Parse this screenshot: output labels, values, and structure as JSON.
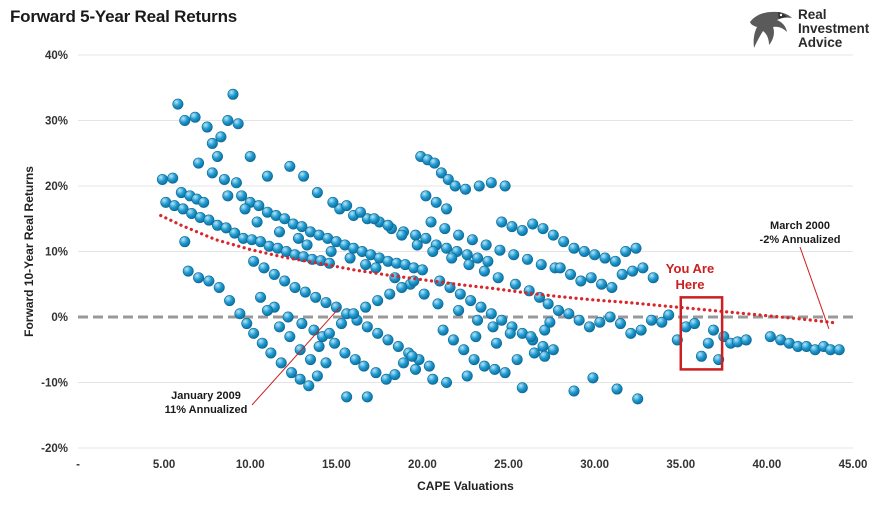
{
  "logo": {
    "brand_lines": [
      "Real",
      "Investment",
      "Advice"
    ]
  },
  "chart_data": {
    "type": "scatter",
    "title": "Forward 5-Year Real Returns",
    "xlabel": "CAPE Valuations",
    "ylabel": "Forward 10-Year Real Returns",
    "xlim": [
      0,
      45
    ],
    "ylim": [
      -20,
      40
    ],
    "x_tick_labels": [
      "-",
      "5.00",
      "10.00",
      "15.00",
      "20.00",
      "25.00",
      "30.00",
      "35.00",
      "40.00",
      "45.00"
    ],
    "y_tick_labels": [
      "-20%",
      "-10%",
      "0%",
      "10%",
      "20%",
      "30%",
      "40%"
    ],
    "grid": "horizontal",
    "colors": {
      "points": "#1f9bd1",
      "trendline": "#d9262b",
      "zero_line": "#999999",
      "highlight_box": "#cc1f1f",
      "annotation_text": "#cc1f1f"
    },
    "trendline": {
      "x": [
        4.8,
        6,
        8,
        10,
        12,
        14,
        16,
        18,
        20,
        22,
        24,
        26,
        28,
        30,
        32,
        34,
        36,
        38,
        40,
        42,
        44
      ],
      "y": [
        15.5,
        14.0,
        11.8,
        10.3,
        9.1,
        8.2,
        7.2,
        6.4,
        5.7,
        5.0,
        4.4,
        3.7,
        3.1,
        2.6,
        2.2,
        1.7,
        1.2,
        0.7,
        0.2,
        -0.3,
        -0.9
      ]
    },
    "zero_line": 0,
    "annotations": [
      {
        "lines": [
          "January 2009",
          "11% Annualized"
        ],
        "color": "#1a1a1a",
        "x": 15.2,
        "y": 1.5
      },
      {
        "lines": [
          "March 2000",
          "-2% Annualized"
        ],
        "color": "#1a1a1a",
        "x": 43.6,
        "y": -1.8
      },
      {
        "lines": [
          "You Are",
          "Here"
        ],
        "color": "#cc1f1f"
      }
    ],
    "highlight_box": {
      "x0": 35.0,
      "x1": 37.4,
      "y0": -8.0,
      "y1": 3.0
    },
    "series": [
      {
        "points": [
          [
            5.8,
            32.5
          ],
          [
            6.8,
            30.5
          ],
          [
            9.0,
            34.0
          ],
          [
            8.7,
            30.0
          ],
          [
            9.3,
            29.5
          ],
          [
            8.3,
            27.5
          ],
          [
            7.8,
            26.5
          ],
          [
            8.1,
            24.5
          ],
          [
            6.2,
            30.0
          ],
          [
            7.5,
            29.0
          ],
          [
            4.9,
            21.0
          ],
          [
            5.5,
            21.2
          ],
          [
            6.0,
            19.0
          ],
          [
            6.5,
            18.5
          ],
          [
            7.0,
            23.5
          ],
          [
            7.8,
            22.0
          ],
          [
            8.5,
            21.0
          ],
          [
            9.2,
            20.5
          ],
          [
            10.0,
            24.5
          ],
          [
            11.0,
            21.5
          ],
          [
            12.3,
            23.0
          ],
          [
            13.1,
            21.5
          ],
          [
            5.1,
            17.5
          ],
          [
            5.6,
            17.0
          ],
          [
            6.1,
            16.5
          ],
          [
            6.6,
            15.8
          ],
          [
            7.1,
            15.2
          ],
          [
            7.6,
            14.8
          ],
          [
            8.1,
            14.0
          ],
          [
            8.6,
            13.6
          ],
          [
            9.1,
            12.8
          ],
          [
            9.6,
            12.0
          ],
          [
            10.1,
            11.8
          ],
          [
            10.6,
            11.5
          ],
          [
            11.1,
            10.8
          ],
          [
            11.6,
            10.5
          ],
          [
            12.1,
            10.0
          ],
          [
            12.6,
            9.5
          ],
          [
            13.1,
            9.2
          ],
          [
            13.6,
            8.8
          ],
          [
            14.1,
            8.6
          ],
          [
            14.6,
            8.2
          ],
          [
            6.2,
            11.5
          ],
          [
            6.4,
            7.0
          ],
          [
            7.0,
            6.0
          ],
          [
            7.6,
            5.5
          ],
          [
            8.2,
            4.5
          ],
          [
            8.8,
            2.5
          ],
          [
            9.4,
            0.5
          ],
          [
            9.8,
            -1.0
          ],
          [
            10.2,
            -2.5
          ],
          [
            10.7,
            -4.0
          ],
          [
            11.2,
            -5.5
          ],
          [
            11.8,
            -7.0
          ],
          [
            12.4,
            -8.5
          ],
          [
            12.9,
            -9.5
          ],
          [
            13.4,
            -10.5
          ],
          [
            13.9,
            -9.0
          ],
          [
            14.4,
            -7.0
          ],
          [
            9.5,
            18.5
          ],
          [
            10.0,
            17.5
          ],
          [
            10.5,
            17.0
          ],
          [
            11.0,
            16.0
          ],
          [
            11.5,
            15.5
          ],
          [
            12.0,
            15.0
          ],
          [
            12.5,
            14.2
          ],
          [
            13.0,
            13.8
          ],
          [
            13.5,
            13.0
          ],
          [
            14.0,
            12.5
          ],
          [
            14.5,
            12.0
          ],
          [
            15.0,
            11.5
          ],
          [
            15.5,
            11.0
          ],
          [
            16.0,
            10.5
          ],
          [
            16.5,
            10.0
          ],
          [
            17.0,
            9.5
          ],
          [
            17.5,
            9.0
          ],
          [
            18.0,
            8.5
          ],
          [
            18.5,
            8.2
          ],
          [
            19.0,
            8.0
          ],
          [
            19.5,
            7.5
          ],
          [
            20.0,
            7.2
          ],
          [
            10.2,
            8.5
          ],
          [
            10.8,
            7.5
          ],
          [
            11.4,
            6.5
          ],
          [
            12.0,
            5.5
          ],
          [
            12.6,
            4.5
          ],
          [
            13.2,
            3.8
          ],
          [
            13.8,
            3.0
          ],
          [
            14.4,
            2.2
          ],
          [
            15.0,
            1.5
          ],
          [
            15.6,
            0.5
          ],
          [
            16.2,
            -0.5
          ],
          [
            16.8,
            -1.5
          ],
          [
            17.4,
            -2.5
          ],
          [
            18.0,
            -3.5
          ],
          [
            18.6,
            -4.5
          ],
          [
            19.2,
            -5.5
          ],
          [
            19.8,
            -6.5
          ],
          [
            20.4,
            -7.5
          ],
          [
            15.2,
            16.5
          ],
          [
            16.0,
            15.5
          ],
          [
            16.8,
            15.0
          ],
          [
            17.5,
            14.5
          ],
          [
            18.2,
            13.5
          ],
          [
            18.9,
            13.0
          ],
          [
            19.6,
            12.5
          ],
          [
            20.2,
            12.0
          ],
          [
            20.8,
            11.0
          ],
          [
            21.4,
            10.5
          ],
          [
            22.0,
            10.0
          ],
          [
            22.6,
            9.5
          ],
          [
            23.2,
            9.0
          ],
          [
            23.8,
            8.5
          ],
          [
            19.9,
            24.5
          ],
          [
            20.3,
            24.0
          ],
          [
            20.7,
            23.5
          ],
          [
            21.1,
            22.0
          ],
          [
            21.5,
            21.0
          ],
          [
            21.9,
            20.0
          ],
          [
            22.5,
            19.5
          ],
          [
            23.3,
            20.0
          ],
          [
            24.0,
            20.5
          ],
          [
            24.8,
            20.0
          ],
          [
            20.2,
            18.5
          ],
          [
            20.8,
            17.5
          ],
          [
            21.4,
            16.5
          ],
          [
            20.5,
            14.5
          ],
          [
            21.3,
            13.5
          ],
          [
            22.1,
            12.5
          ],
          [
            22.9,
            11.8
          ],
          [
            23.7,
            11.0
          ],
          [
            24.5,
            10.2
          ],
          [
            25.3,
            9.5
          ],
          [
            26.1,
            8.8
          ],
          [
            26.9,
            8.0
          ],
          [
            27.7,
            7.5
          ],
          [
            21.0,
            5.5
          ],
          [
            21.6,
            4.5
          ],
          [
            22.2,
            3.5
          ],
          [
            22.8,
            2.5
          ],
          [
            23.4,
            1.5
          ],
          [
            24.0,
            0.5
          ],
          [
            24.6,
            -0.5
          ],
          [
            25.2,
            -1.5
          ],
          [
            25.8,
            -2.5
          ],
          [
            26.4,
            -3.5
          ],
          [
            27.0,
            -4.5
          ],
          [
            27.6,
            -5.0
          ],
          [
            21.2,
            -2.0
          ],
          [
            21.8,
            -3.5
          ],
          [
            22.4,
            -5.0
          ],
          [
            23.0,
            -6.5
          ],
          [
            23.6,
            -7.5
          ],
          [
            24.2,
            -8.0
          ],
          [
            24.8,
            -8.5
          ],
          [
            20.6,
            -9.5
          ],
          [
            21.4,
            -10.0
          ],
          [
            22.6,
            -9.0
          ],
          [
            19.6,
            -8.0
          ],
          [
            24.6,
            14.5
          ],
          [
            25.2,
            13.8
          ],
          [
            25.8,
            13.2
          ],
          [
            26.4,
            14.2
          ],
          [
            27.0,
            13.5
          ],
          [
            27.6,
            12.5
          ],
          [
            28.2,
            11.5
          ],
          [
            28.8,
            10.5
          ],
          [
            29.4,
            10.0
          ],
          [
            30.0,
            9.5
          ],
          [
            30.6,
            9.0
          ],
          [
            31.2,
            8.5
          ],
          [
            31.8,
            10.0
          ],
          [
            32.4,
            10.5
          ],
          [
            28.0,
            7.5
          ],
          [
            28.6,
            6.5
          ],
          [
            29.2,
            5.5
          ],
          [
            29.8,
            6.0
          ],
          [
            30.4,
            5.0
          ],
          [
            31.0,
            4.5
          ],
          [
            31.6,
            6.5
          ],
          [
            32.2,
            7.0
          ],
          [
            32.8,
            7.5
          ],
          [
            33.4,
            6.0
          ],
          [
            27.3,
            2.0
          ],
          [
            27.9,
            1.0
          ],
          [
            28.5,
            0.5
          ],
          [
            29.1,
            -0.5
          ],
          [
            29.7,
            -1.5
          ],
          [
            30.3,
            -0.8
          ],
          [
            30.9,
            0.0
          ],
          [
            31.5,
            -1.0
          ],
          [
            32.1,
            -2.5
          ],
          [
            32.7,
            -2.0
          ],
          [
            33.3,
            -0.5
          ],
          [
            33.9,
            -0.8
          ],
          [
            34.3,
            0.3
          ],
          [
            15.6,
            -12.2
          ],
          [
            16.8,
            -12.2
          ],
          [
            25.8,
            -10.8
          ],
          [
            28.8,
            -11.3
          ],
          [
            29.9,
            -9.3
          ],
          [
            31.3,
            -11.0
          ],
          [
            32.5,
            -12.5
          ],
          [
            34.8,
            -3.5
          ],
          [
            35.3,
            -1.5
          ],
          [
            35.8,
            -1.0
          ],
          [
            36.2,
            -6.0
          ],
          [
            36.6,
            -4.0
          ],
          [
            36.9,
            -2.0
          ],
          [
            37.2,
            -6.5
          ],
          [
            37.5,
            -3.0
          ],
          [
            37.9,
            -4.0
          ],
          [
            38.3,
            -3.8
          ],
          [
            38.8,
            -3.5
          ],
          [
            40.2,
            -3.0
          ],
          [
            40.8,
            -3.5
          ],
          [
            41.3,
            -4.0
          ],
          [
            41.8,
            -4.5
          ],
          [
            42.3,
            -4.5
          ],
          [
            42.8,
            -5.0
          ],
          [
            43.3,
            -4.5
          ],
          [
            43.7,
            -5.0
          ],
          [
            44.2,
            -5.0
          ],
          [
            6.9,
            18.0
          ],
          [
            7.3,
            17.5
          ],
          [
            8.7,
            18.5
          ],
          [
            9.7,
            16.5
          ],
          [
            10.4,
            14.5
          ],
          [
            11.7,
            13.0
          ],
          [
            12.8,
            12.0
          ],
          [
            13.3,
            11.0
          ],
          [
            14.7,
            10.0
          ],
          [
            15.8,
            9.0
          ],
          [
            16.7,
            8.0
          ],
          [
            17.3,
            7.5
          ],
          [
            18.4,
            6.0
          ],
          [
            19.3,
            5.0
          ],
          [
            20.1,
            3.5
          ],
          [
            20.9,
            2.0
          ],
          [
            22.1,
            1.0
          ],
          [
            23.2,
            -0.5
          ],
          [
            24.1,
            -1.5
          ],
          [
            25.1,
            -2.5
          ],
          [
            26.3,
            -3.0
          ],
          [
            27.1,
            -2.0
          ],
          [
            11.4,
            1.5
          ],
          [
            12.2,
            0.0
          ],
          [
            13.0,
            -1.0
          ],
          [
            13.7,
            -2.0
          ],
          [
            14.2,
            -3.0
          ],
          [
            14.9,
            -4.0
          ],
          [
            15.5,
            -5.5
          ],
          [
            16.1,
            -6.5
          ],
          [
            16.6,
            -7.5
          ],
          [
            17.3,
            -8.5
          ],
          [
            17.9,
            -9.5
          ],
          [
            18.4,
            -8.8
          ],
          [
            18.9,
            -7.0
          ],
          [
            19.4,
            -6.0
          ],
          [
            10.6,
            3.0
          ],
          [
            11.0,
            1.0
          ],
          [
            11.7,
            -1.5
          ],
          [
            12.3,
            -3.0
          ],
          [
            12.9,
            -5.0
          ],
          [
            13.5,
            -6.5
          ],
          [
            14.0,
            -4.5
          ],
          [
            14.6,
            -2.5
          ],
          [
            15.3,
            -1.0
          ],
          [
            16.0,
            0.5
          ],
          [
            16.7,
            1.5
          ],
          [
            17.4,
            2.5
          ],
          [
            18.1,
            3.5
          ],
          [
            18.8,
            4.5
          ],
          [
            19.5,
            5.5
          ],
          [
            13.9,
            19.0
          ],
          [
            14.8,
            17.5
          ],
          [
            15.6,
            17.0
          ],
          [
            16.4,
            16.0
          ],
          [
            17.2,
            15.0
          ],
          [
            18.0,
            14.0
          ],
          [
            18.8,
            12.5
          ],
          [
            19.7,
            11.0
          ],
          [
            20.6,
            10.0
          ],
          [
            21.7,
            9.0
          ],
          [
            22.7,
            8.0
          ],
          [
            23.6,
            7.0
          ],
          [
            24.4,
            6.0
          ],
          [
            25.4,
            5.0
          ],
          [
            26.2,
            4.0
          ],
          [
            26.8,
            3.0
          ],
          [
            27.4,
            -0.8
          ],
          [
            27.1,
            -6.0
          ],
          [
            26.5,
            -5.5
          ],
          [
            25.5,
            -6.5
          ],
          [
            24.3,
            -4.0
          ],
          [
            23.1,
            -3.0
          ]
        ]
      }
    ]
  }
}
